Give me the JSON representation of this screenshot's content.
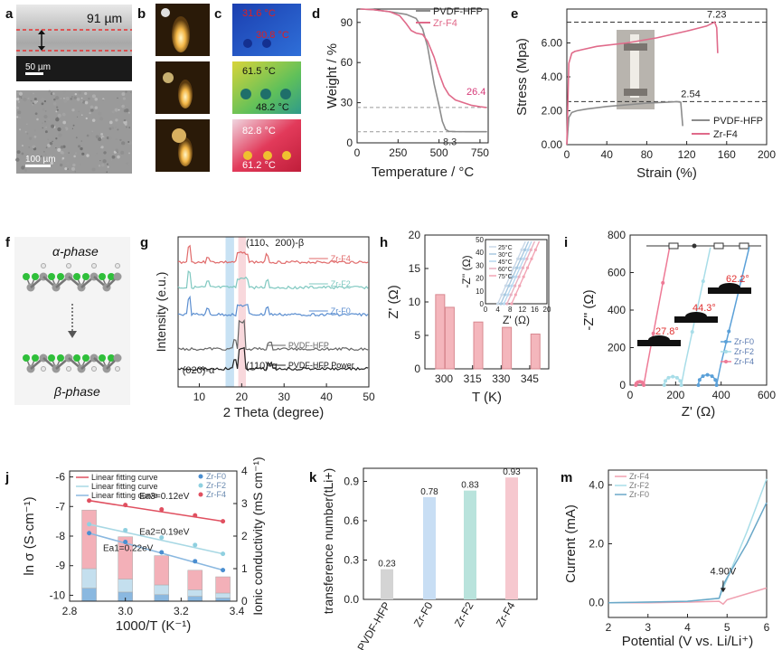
{
  "figure": {
    "panel_letters": [
      "a",
      "b",
      "c",
      "d",
      "e",
      "f",
      "g",
      "h",
      "i",
      "j",
      "k",
      "m"
    ]
  },
  "panel_a": {
    "thickness_label": "91 µm",
    "scale_top": "50 µm",
    "scale_bottom": "100 µm"
  },
  "panel_c": {
    "temps": [
      "31.6 °C",
      "30.8 °C",
      "61.5 °C",
      "48.2 °C",
      "82.8 °C",
      "61.2 °C"
    ]
  },
  "panel_f": {
    "top_label": "α-phase",
    "bottom_label": "β-phase"
  },
  "chart_data": [
    {
      "panel": "d",
      "type": "line",
      "title": "",
      "xlabel": "Temperature / °C",
      "ylabel": "Weight / %",
      "xlim": [
        0,
        800
      ],
      "ylim": [
        0,
        100
      ],
      "xticks": [
        "0",
        "250",
        "500",
        "750"
      ],
      "yticks": [
        "0",
        "30",
        "60",
        "90"
      ],
      "series": [
        {
          "name": "PVDF-HFP",
          "color": "#8c8c8c",
          "x": [
            20,
            100,
            200,
            300,
            360,
            400,
            430,
            450,
            470,
            500,
            520,
            540,
            560,
            600,
            700,
            790
          ],
          "y": [
            100,
            99.5,
            98,
            96,
            93,
            85,
            72,
            58,
            44,
            28,
            16,
            10,
            8.6,
            8.4,
            8.3,
            8.3
          ]
        },
        {
          "name": "Zr-F4",
          "color": "#e06a8a",
          "x": [
            20,
            100,
            200,
            260,
            300,
            330,
            360,
            400,
            430,
            470,
            500,
            530,
            560,
            600,
            650,
            700,
            750,
            790
          ],
          "y": [
            100,
            99.5,
            98,
            95,
            89,
            84,
            82,
            81,
            76,
            64,
            52,
            42,
            36,
            32,
            30,
            28,
            27,
            26.4
          ]
        }
      ],
      "annotations": [
        "26.4",
        "8.3"
      ],
      "legend": [
        "PVDF-HFP",
        "Zr-F4"
      ]
    },
    {
      "panel": "e",
      "type": "line",
      "xlabel": "Strain (%)",
      "ylabel": "Stress (Mpa)",
      "xlim": [
        0,
        200
      ],
      "ylim": [
        0,
        8
      ],
      "xticks": [
        "0",
        "40",
        "80",
        "120",
        "160",
        "200"
      ],
      "yticks": [
        "0.00",
        "2.00",
        "4.00",
        "6.00"
      ],
      "series": [
        {
          "name": "PVDF-HFP",
          "color": "#8c8c8c",
          "x": [
            0,
            2,
            5,
            10,
            20,
            40,
            60,
            80,
            100,
            110,
            114,
            116
          ],
          "y": [
            0,
            1.6,
            1.9,
            2.0,
            2.1,
            2.25,
            2.35,
            2.45,
            2.5,
            2.54,
            2.5,
            1.1
          ]
        },
        {
          "name": "Zr-F4",
          "color": "#e06a8a",
          "x": [
            0,
            2,
            5,
            8,
            15,
            30,
            60,
            90,
            120,
            140,
            148,
            150,
            151
          ],
          "y": [
            0,
            4.8,
            5.4,
            5.5,
            5.6,
            5.8,
            6.0,
            6.3,
            6.7,
            7.0,
            7.23,
            6.9,
            5.4
          ]
        }
      ],
      "annotations": [
        "7.23",
        "2.54"
      ],
      "legend": [
        "PVDF-HFP",
        "Zr-F4"
      ]
    },
    {
      "panel": "g",
      "type": "line",
      "xlabel": "2 Theta (degree)",
      "ylabel": "Intensity (e.u.)",
      "xlim": [
        5,
        50
      ],
      "xticks": [
        "10",
        "20",
        "30",
        "40",
        "50"
      ],
      "series_labels": [
        "Zr-F4",
        "Zr-F2",
        "Zr-F0",
        "PVDF-HFP",
        "PVDF-HFP Power"
      ],
      "annotations": [
        "(110、200)-β",
        "(020)-α",
        "(110)-α"
      ]
    },
    {
      "panel": "h",
      "type": "bar",
      "xlabel": "T (K)",
      "ylabel": "Z' (Ω)",
      "ylim": [
        0,
        20
      ],
      "yticks": [
        "0",
        "5",
        "10",
        "15",
        "20"
      ],
      "xticks": [
        "300",
        "315",
        "330",
        "345"
      ],
      "categories": [
        298,
        303,
        318,
        333,
        348
      ],
      "values": [
        11.1,
        9.2,
        7.0,
        6.2,
        5.2
      ],
      "inset": {
        "xlabel": "Z' (Ω)",
        "ylabel": "-Z'' (Ω)",
        "xticks": [
          "0",
          "4",
          "8",
          "12",
          "16",
          "20"
        ],
        "yticks": [
          "0",
          "10",
          "20",
          "30",
          "40",
          "50"
        ],
        "legend": [
          "25°C",
          "30°C",
          "45°C",
          "60°C",
          "75°C"
        ]
      }
    },
    {
      "panel": "i",
      "type": "line",
      "xlabel": "Z' (Ω)",
      "ylabel": "-Z'' (Ω)",
      "xlim": [
        0,
        600
      ],
      "ylim": [
        0,
        800
      ],
      "xticks": [
        "0",
        "200",
        "400",
        "600"
      ],
      "yticks": [
        "0",
        "200",
        "400",
        "600",
        "800"
      ],
      "legend": [
        "Zr-F0",
        "Zr-F2",
        "Zr-F4"
      ],
      "annotations": [
        "27.8°",
        "44.3°",
        "62.2°"
      ]
    },
    {
      "panel": "j",
      "type": "scatter",
      "xlabel": "1000/T (K⁻¹)",
      "ylabel": "ln σ (S·cm⁻¹)",
      "y2label": "Ionic conductivity (mS cm⁻¹)",
      "xlim": [
        2.8,
        3.4
      ],
      "ylim": [
        -10.2,
        -5.8
      ],
      "y2lim": [
        0,
        4
      ],
      "xticks": [
        "2.8",
        "3.0",
        "3.2",
        "3.4"
      ],
      "yticks": [
        "-6",
        "-7",
        "-8",
        "-9",
        "-10"
      ],
      "y2ticks": [
        "0",
        "1",
        "2",
        "3",
        "4"
      ],
      "series": [
        {
          "name": "Zr-F0",
          "color": "#4a8ed0",
          "x": [
            2.87,
            3.0,
            3.13,
            3.25,
            3.35
          ],
          "y": [
            -7.9,
            -8.2,
            -8.55,
            -8.85,
            -9.15
          ]
        },
        {
          "name": "Zr-F2",
          "color": "#8fd0e0",
          "x": [
            2.87,
            3.0,
            3.13,
            3.25,
            3.35
          ],
          "y": [
            -7.6,
            -7.8,
            -8.05,
            -8.3,
            -8.6
          ]
        },
        {
          "name": "Zr-F4",
          "color": "#e05060",
          "x": [
            2.87,
            3.0,
            3.13,
            3.25,
            3.35
          ],
          "y": [
            -6.8,
            -6.95,
            -7.1,
            -7.3,
            -7.5
          ]
        }
      ],
      "bars_x": [
        2.87,
        3.0,
        3.13,
        3.25,
        3.35
      ],
      "bars": {
        "Zr-F0": [
          0.4,
          0.28,
          0.2,
          0.15,
          0.1
        ],
        "Zr-F2": [
          0.6,
          0.4,
          0.3,
          0.2,
          0.15
        ],
        "Zr-F4": [
          1.8,
          1.3,
          0.9,
          0.6,
          0.5
        ]
      },
      "legend_fit": [
        "Linear fitting curve",
        "Linear fitting curve",
        "Linear fitting curve"
      ],
      "annotations": [
        "Ea3=0.12eV",
        "Ea2=0.19eV",
        "Ea1=0.22eV"
      ]
    },
    {
      "panel": "k",
      "type": "bar",
      "ylabel": "transference number(tLi+)",
      "ylim": [
        0,
        1.0
      ],
      "yticks": [
        "0.0",
        "0.3",
        "0.6",
        "0.9"
      ],
      "categories": [
        "PVDF-HFP",
        "Zr-F0",
        "Zr-F2",
        "Zr-F4"
      ],
      "values": [
        0.23,
        0.78,
        0.83,
        0.93
      ],
      "labels": [
        "0.23",
        "0.78",
        "0.83",
        "0.93"
      ],
      "colors": [
        "#d4d4d4",
        "#c8def4",
        "#b9e3dc",
        "#f6c8cf"
      ]
    },
    {
      "panel": "m",
      "type": "line",
      "xlabel": "Potential (V vs. Li/Li⁺)",
      "ylabel": "Current (mA)",
      "xlim": [
        2,
        6
      ],
      "ylim": [
        -0.5,
        4.5
      ],
      "xticks": [
        "2",
        "3",
        "4",
        "5",
        "6"
      ],
      "yticks": [
        "0.0",
        "2.0",
        "4.0"
      ],
      "series": [
        {
          "name": "Zr-F4",
          "color": "#f0a0b0",
          "x": [
            2,
            3,
            4,
            4.8,
            4.9,
            5.0,
            5.5,
            6.0
          ],
          "y": [
            0,
            0,
            0.02,
            0.05,
            -0.05,
            0.1,
            0.3,
            0.5
          ]
        },
        {
          "name": "Zr-F2",
          "color": "#a8dde8",
          "x": [
            2,
            3,
            4,
            4.8,
            4.9,
            5.0,
            5.5,
            6.0
          ],
          "y": [
            0,
            0.02,
            0.05,
            0.15,
            0.5,
            0.8,
            2.4,
            4.2
          ]
        },
        {
          "name": "Zr-F0",
          "color": "#6aa8c8",
          "x": [
            2,
            3,
            4,
            4.8,
            4.9,
            5.0,
            5.5,
            6.0
          ],
          "y": [
            0,
            0.02,
            0.05,
            0.15,
            0.6,
            0.85,
            2.0,
            3.4
          ]
        }
      ],
      "annotations": [
        "4.90V"
      ],
      "legend": [
        "Zr-F4",
        "Zr-F2",
        "Zr-F0"
      ]
    }
  ]
}
